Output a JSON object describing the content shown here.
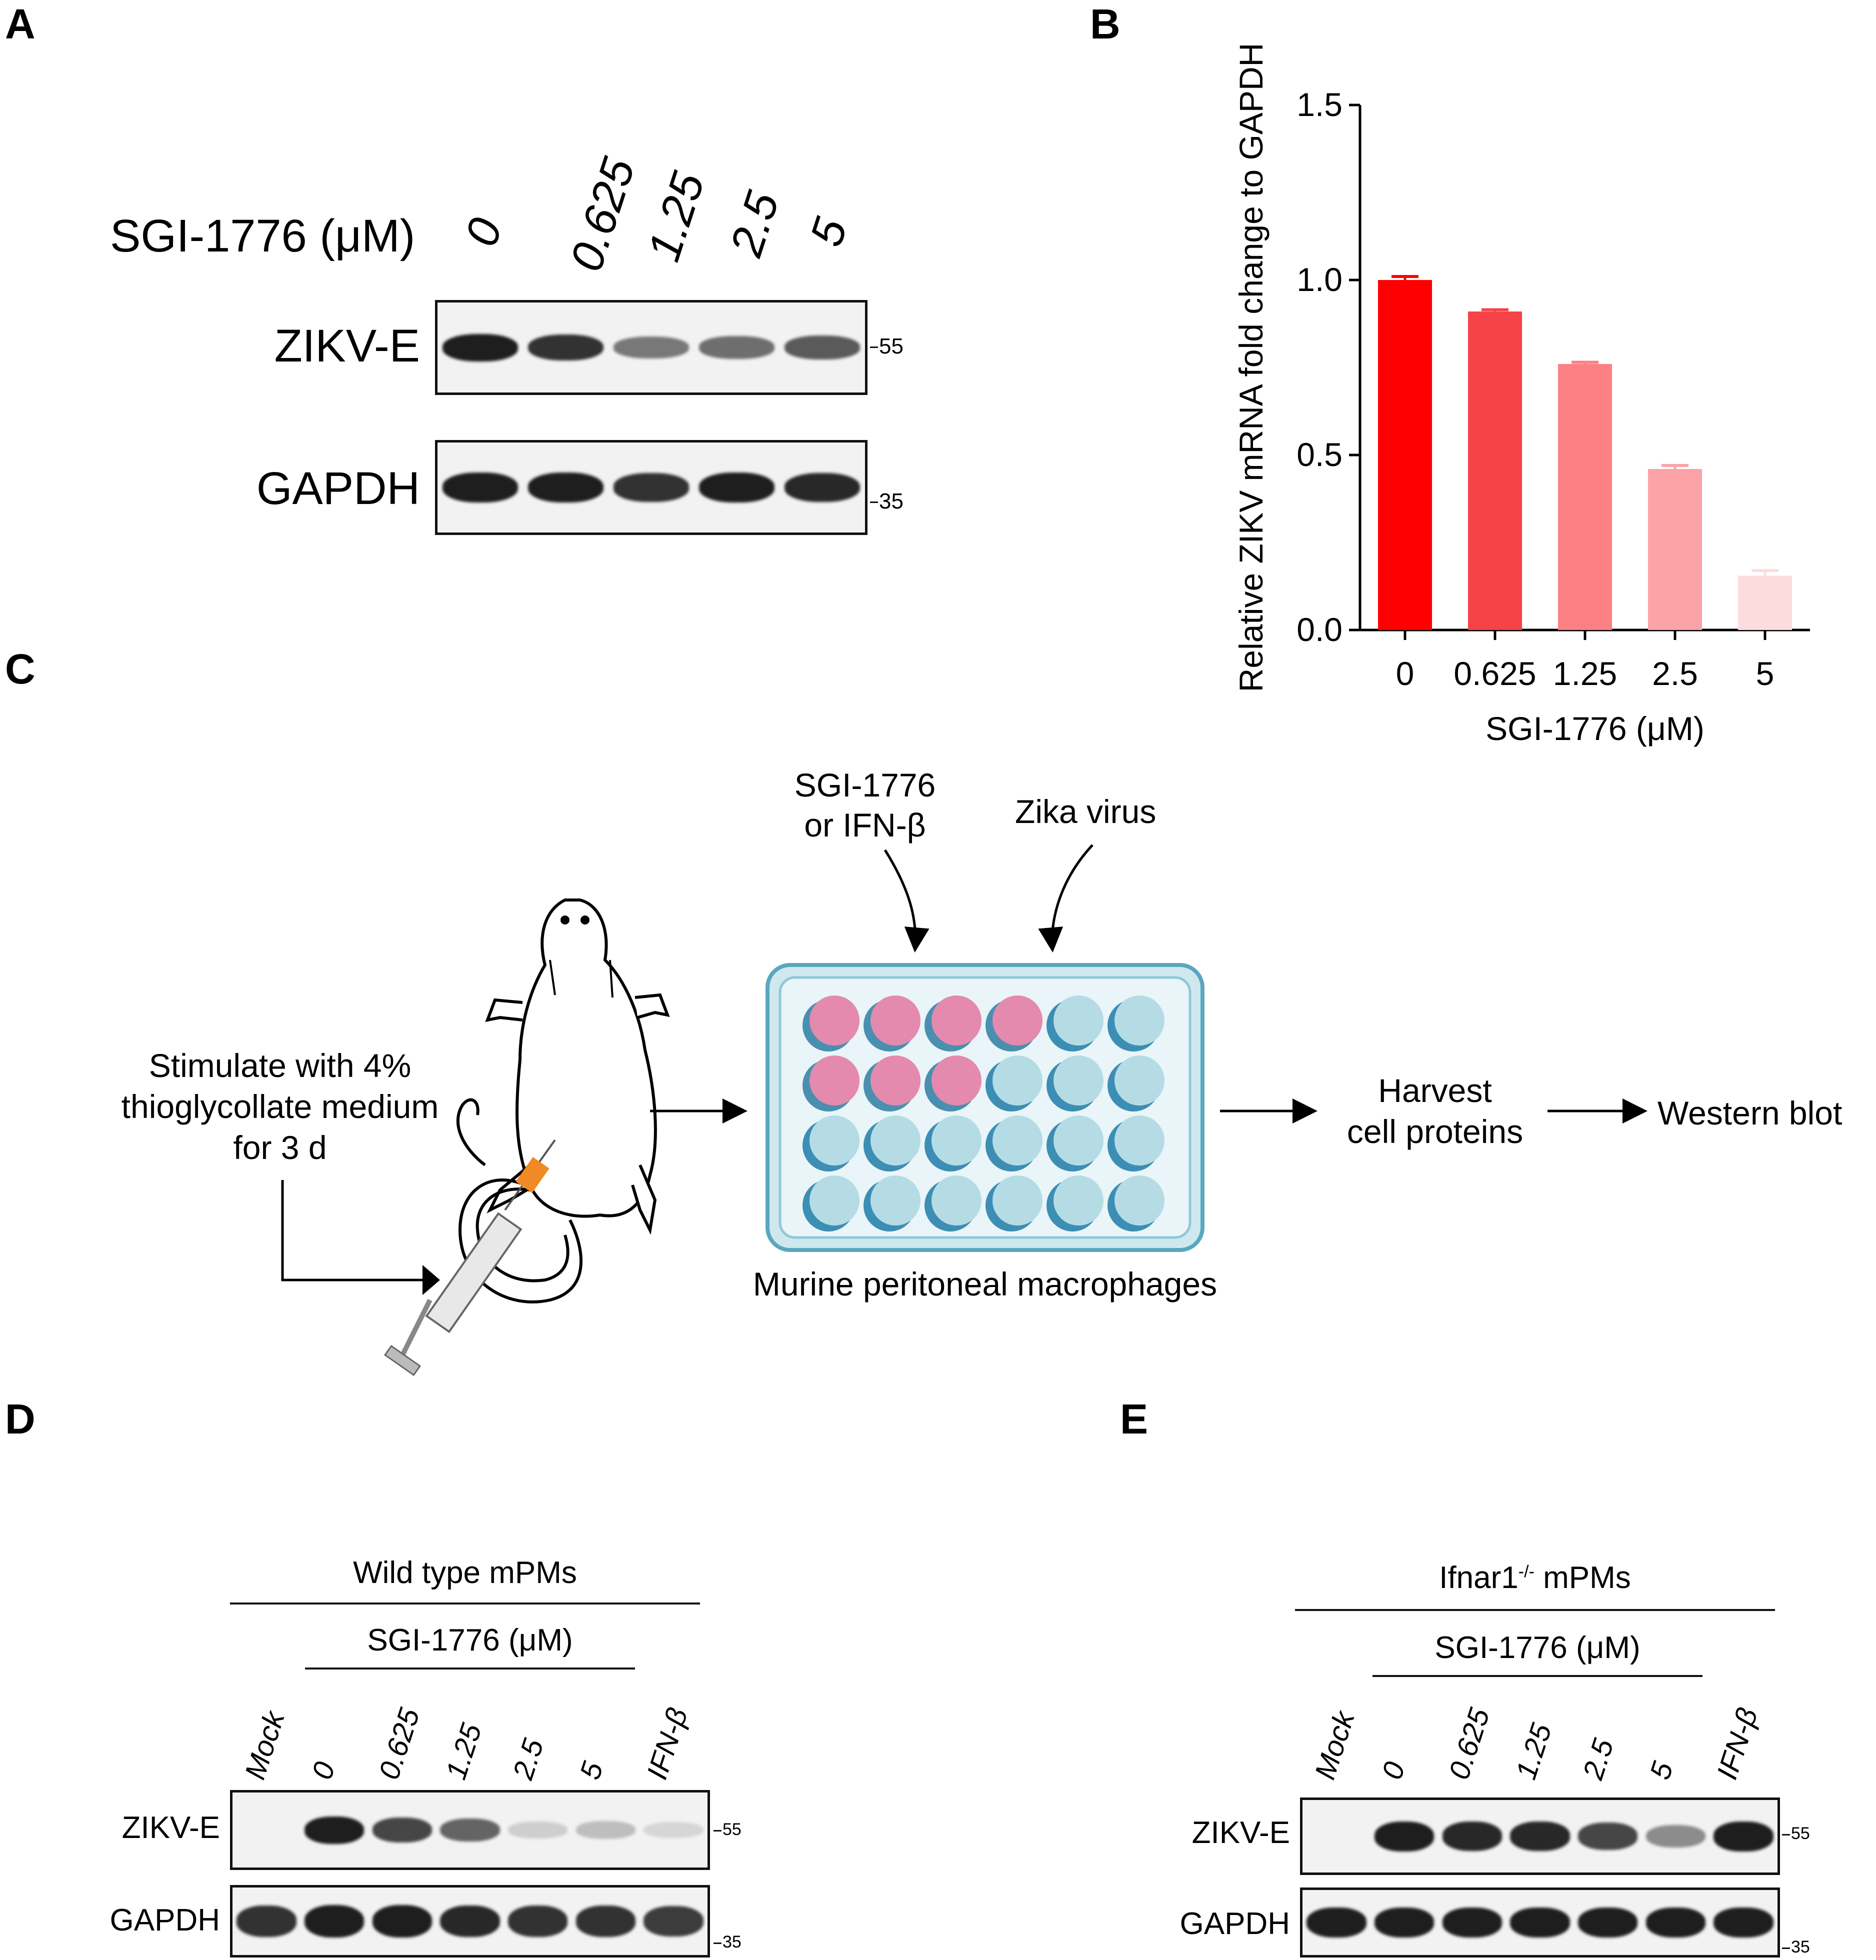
{
  "panels": {
    "a": "A",
    "b": "B",
    "c": "C",
    "d": "D",
    "e": "E"
  },
  "panel_a": {
    "treatment_label": "SGI-1776 (μM)",
    "lanes": [
      "0",
      "0.625",
      "1.25",
      "2.5",
      "5"
    ],
    "rows": [
      "ZIKV-E",
      "GAPDH"
    ],
    "markers": [
      "55",
      "35"
    ],
    "zikv_band_intensity": [
      1.0,
      0.9,
      0.55,
      0.6,
      0.7
    ],
    "gapdh_band_intensity": [
      1.0,
      1.0,
      0.9,
      1.0,
      0.95
    ]
  },
  "chart_data": {
    "type": "bar",
    "categories": [
      "0",
      "0.625",
      "1.25",
      "2.5",
      "5"
    ],
    "values": [
      1.0,
      0.91,
      0.76,
      0.46,
      0.155
    ],
    "errors": [
      0.01,
      0.005,
      0.005,
      0.01,
      0.015
    ],
    "colors": [
      "#ff0000",
      "#f54348",
      "#fb8084",
      "#fca3a7",
      "#fddcde"
    ],
    "xlabel": "SGI-1776 (μM)",
    "ylabel": "Relative ZIKV mRNA fold change to GAPDH",
    "ylim": [
      0,
      1.5
    ],
    "yticks": [
      "0.0",
      "0.5",
      "1.0",
      "1.5"
    ]
  },
  "panel_c": {
    "stimulate": [
      "Stimulate with 4%",
      "thioglycollate medium",
      "for 3 d"
    ],
    "treat": [
      "SGI-1776",
      "or IFN-β"
    ],
    "virus": "Zika virus",
    "plate_label": "Murine peritoneal macrophages",
    "harvest": [
      "Harvest",
      "cell proteins"
    ],
    "readout": "Western blot",
    "well_colors": {
      "infected": "#e38aae",
      "uninfected": "#b5dce5",
      "shadow_pink": "#4a8fb0",
      "shadow_blue": "#3d8eb4",
      "plate": "#a9d6e0"
    }
  },
  "panel_d": {
    "group": "Wild type  mPMs",
    "treatment_label": "SGI-1776 (μM)",
    "lanes": [
      "Mock",
      "0",
      "0.625",
      "1.25",
      "2.5",
      "5",
      "IFN-β"
    ],
    "rows": [
      "ZIKV-E",
      "GAPDH"
    ],
    "markers": [
      "55",
      "35"
    ],
    "zikv_band_intensity": [
      0.0,
      1.0,
      0.8,
      0.65,
      0.12,
      0.2,
      0.08
    ],
    "gapdh_band_intensity": [
      0.9,
      1.0,
      1.0,
      0.95,
      0.9,
      0.9,
      0.85
    ]
  },
  "panel_e": {
    "group_name": "Ifnar1",
    "group_sup": "-/-",
    "group_suffix": " mPMs",
    "treatment_label": "SGI-1776 (μM)",
    "lanes": [
      "Mock",
      "0",
      "0.625",
      "1.25",
      "2.5",
      "5",
      "IFN-β"
    ],
    "rows": [
      "ZIKV-E",
      "GAPDH"
    ],
    "markers": [
      "55",
      "35"
    ],
    "zikv_band_intensity": [
      0.0,
      1.0,
      0.95,
      0.95,
      0.8,
      0.45,
      1.0
    ],
    "gapdh_band_intensity": [
      1.0,
      1.0,
      1.0,
      1.0,
      1.0,
      1.0,
      1.0
    ]
  }
}
